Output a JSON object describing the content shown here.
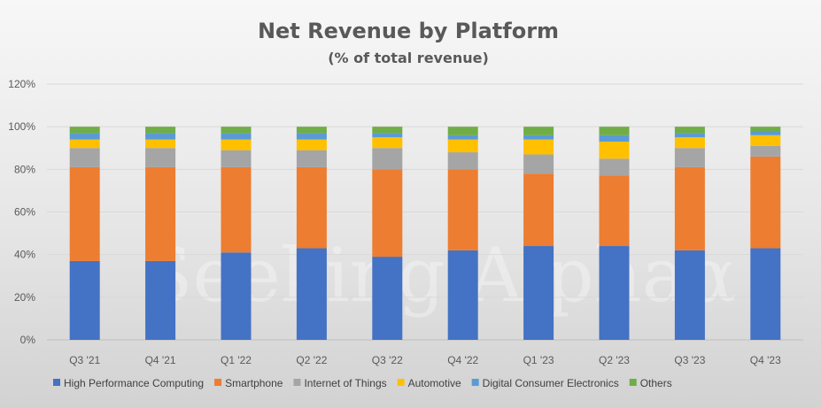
{
  "chart_data": {
    "type": "bar",
    "stacked": true,
    "title": "Net Revenue by Platform",
    "subtitle": "(% of total revenue)",
    "xlabel": "",
    "ylabel": "",
    "ylim": [
      0,
      120
    ],
    "yticks": [
      "0%",
      "20%",
      "40%",
      "60%",
      "80%",
      "100%",
      "120%"
    ],
    "ytick_values": [
      0,
      20,
      40,
      60,
      80,
      100,
      120
    ],
    "grid": true,
    "legend_position": "bottom",
    "categories": [
      "Q3 '21",
      "Q4 '21",
      "Q1 '22",
      "Q2 '22",
      "Q3 '22",
      "Q4 '22",
      "Q1 '23",
      "Q2 '23",
      "Q3 '23",
      "Q4 '23"
    ],
    "series": [
      {
        "name": "High Performance Computing",
        "color": "#4472C4",
        "values": [
          37,
          37,
          41,
          43,
          39,
          42,
          44,
          44,
          42,
          43
        ]
      },
      {
        "name": "Smartphone",
        "color": "#ED7D31",
        "values": [
          44,
          44,
          40,
          38,
          41,
          38,
          34,
          33,
          39,
          43
        ]
      },
      {
        "name": "Internet of Things",
        "color": "#A5A5A5",
        "values": [
          9,
          9,
          8,
          8,
          10,
          8,
          9,
          8,
          9,
          5
        ]
      },
      {
        "name": "Automotive",
        "color": "#FFC000",
        "values": [
          4,
          4,
          5,
          5,
          5,
          6,
          7,
          8,
          5,
          5
        ]
      },
      {
        "name": "Digital Consumer Electronics",
        "color": "#5B9BD5",
        "values": [
          3,
          3,
          3,
          3,
          2,
          2,
          2,
          3,
          2,
          2
        ]
      },
      {
        "name": "Others",
        "color": "#70AD47",
        "values": [
          3,
          3,
          3,
          3,
          3,
          4,
          4,
          4,
          3,
          2
        ]
      }
    ],
    "watermark": "Seeking Alphaα"
  }
}
